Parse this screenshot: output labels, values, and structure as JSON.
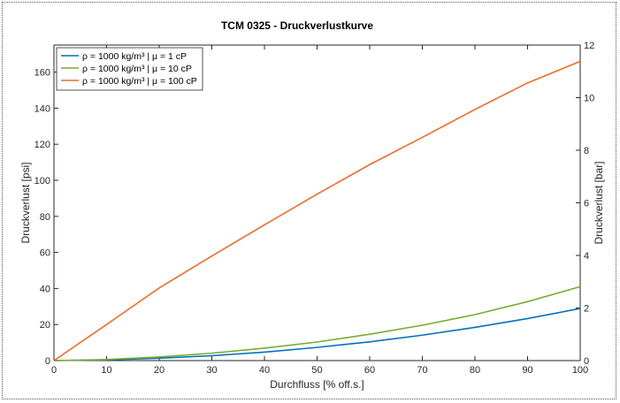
{
  "chart_data": {
    "type": "line",
    "title": "TCM 0325 - Druckverlustkurve",
    "xlabel": "Durchfluss [% off.s.]",
    "ylabel": "Druckverlust [psi]",
    "ylabel_right": "Druckverlust [bar]",
    "xlim": [
      0,
      100
    ],
    "ylim": [
      0,
      175
    ],
    "ylim_right": [
      0,
      12
    ],
    "xticks": [
      0,
      10,
      20,
      30,
      40,
      50,
      60,
      70,
      80,
      90,
      100
    ],
    "yticks": [
      0,
      20,
      40,
      60,
      80,
      100,
      120,
      140,
      160
    ],
    "yticks_right": [
      0,
      2,
      4,
      6,
      8,
      10,
      12
    ],
    "grid": false,
    "legend_position": "top-left",
    "x": [
      0,
      10,
      20,
      30,
      40,
      50,
      60,
      70,
      80,
      90,
      100
    ],
    "series": [
      {
        "name": "ρ = 1000 kg/m³ | μ = 1 cP",
        "color": "#0072BD",
        "values": [
          0,
          0.4,
          1.3,
          2.7,
          4.7,
          7.3,
          10.4,
          14.1,
          18.4,
          23.3,
          28.9
        ]
      },
      {
        "name": "ρ = 1000 kg/m³ | μ = 10 cP",
        "color": "#77AC30",
        "values": [
          0,
          0.6,
          2.0,
          4.1,
          6.9,
          10.3,
          14.6,
          19.6,
          25.5,
          32.7,
          41.0
        ]
      },
      {
        "name": "ρ = 1000 kg/m³ | μ = 100 cP",
        "color": "#EE6C2B",
        "values": [
          0,
          20.0,
          40.3,
          58.0,
          75.3,
          92.3,
          108.7,
          123.8,
          139.3,
          154.0,
          166.0
        ]
      }
    ]
  }
}
